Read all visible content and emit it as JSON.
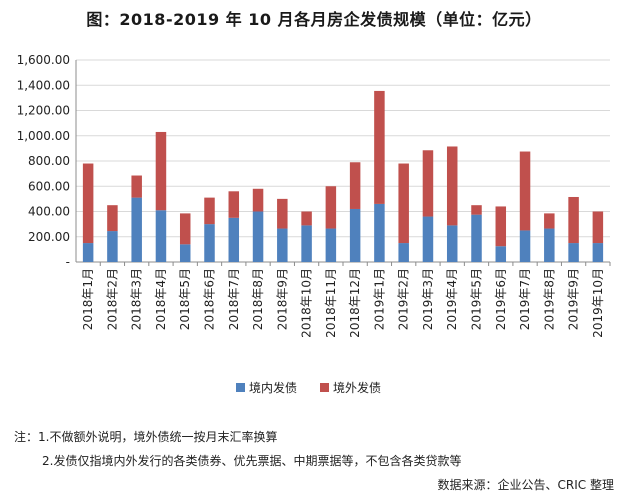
{
  "title": "图：2018-2019 年 10 月各月房企发债规模（单位：亿元）",
  "notes": [
    "注：1.不做额外说明，境外债统一按月末汇率换算",
    "2.发债仅指境内外发行的各类债券、优先票据、中期票据等，不包含各类贷款等"
  ],
  "source": "数据来源：企业公告、CRIC 整理",
  "chart_data": {
    "type": "bar",
    "stacked": true,
    "title": "图：2018-2019 年 10 月各月房企发债规模（单位：亿元）",
    "categories": [
      "2018年1月",
      "2018年2月",
      "2018年3月",
      "2018年4月",
      "2018年5月",
      "2018年6月",
      "2018年7月",
      "2018年8月",
      "2018年9月",
      "2018年10月",
      "2018年11月",
      "2018年12月",
      "2019年1月",
      "2019年2月",
      "2019年3月",
      "2019年4月",
      "2019年5月",
      "2019年6月",
      "2019年7月",
      "2019年8月",
      "2019年9月",
      "2019年10月"
    ],
    "series": [
      {
        "name": "境内发债",
        "color": "#4f81bd",
        "values": [
          150,
          245,
          510,
          410,
          140,
          300,
          350,
          400,
          265,
          290,
          265,
          420,
          460,
          150,
          360,
          290,
          375,
          125,
          250,
          265,
          150,
          150
        ]
      },
      {
        "name": "境外发债",
        "color": "#c0504d",
        "values": [
          630,
          205,
          175,
          620,
          245,
          210,
          210,
          180,
          235,
          110,
          335,
          370,
          895,
          630,
          525,
          625,
          75,
          315,
          625,
          120,
          365,
          250
        ]
      }
    ],
    "yticks": [
      "-",
      "200.00",
      "400.00",
      "600.00",
      "800.00",
      "1,000.00",
      "1,200.00",
      "1,400.00",
      "1,600.00"
    ],
    "ylim": [
      0,
      1600
    ],
    "grid": true,
    "legend": "bottom"
  }
}
